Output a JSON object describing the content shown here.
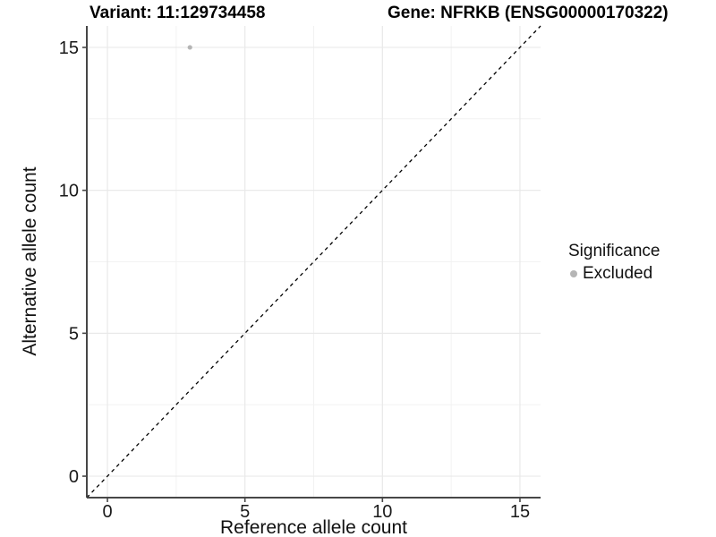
{
  "header": {
    "variant_title": "Variant: 11:129734458",
    "gene_title": "Gene: NFRKB (ENSG00000170322)"
  },
  "chart_data": {
    "type": "scatter",
    "title": "Variant: 11:129734458   Gene: NFRKB (ENSG00000170322)",
    "xlabel": "Reference allele count",
    "ylabel": "Alternative allele count",
    "xlim": [
      -0.75,
      15.75
    ],
    "ylim": [
      -0.75,
      15.75
    ],
    "x_ticks": [
      0,
      5,
      10,
      15
    ],
    "y_ticks": [
      0,
      5,
      10,
      15
    ],
    "x_minor_ticks": [
      2.5,
      7.5,
      12.5
    ],
    "y_minor_ticks": [
      2.5,
      7.5,
      12.5
    ],
    "grid": true,
    "legend_position": "right",
    "series": [
      {
        "name": "Excluded",
        "color": "#b5b5b5",
        "points": [
          {
            "x": 3,
            "y": 15
          }
        ]
      }
    ],
    "reference_line": {
      "type": "identity (y = x)",
      "from": [
        -0.75,
        -0.75
      ],
      "to": [
        15.75,
        15.75
      ],
      "style": "dashed",
      "color": "#000000"
    }
  },
  "axes": {
    "x": {
      "label": "Reference allele count",
      "tick_labels": [
        "0",
        "5",
        "10",
        "15"
      ]
    },
    "y": {
      "label": "Alternative allele count",
      "tick_labels": [
        "0",
        "5",
        "10",
        "15"
      ]
    }
  },
  "legend": {
    "title": "Significance",
    "items": [
      {
        "label": "Excluded",
        "color": "#b5b5b5"
      }
    ]
  },
  "colors": {
    "background": "#ffffff",
    "grid_major": "#e9e9e9",
    "grid_minor": "#f2f2f2",
    "axis_line": "#474747",
    "tick_text": "#1a1a1a",
    "title_text": "#000000",
    "dashed_line": "#000000",
    "point": "#b5b5b5"
  }
}
